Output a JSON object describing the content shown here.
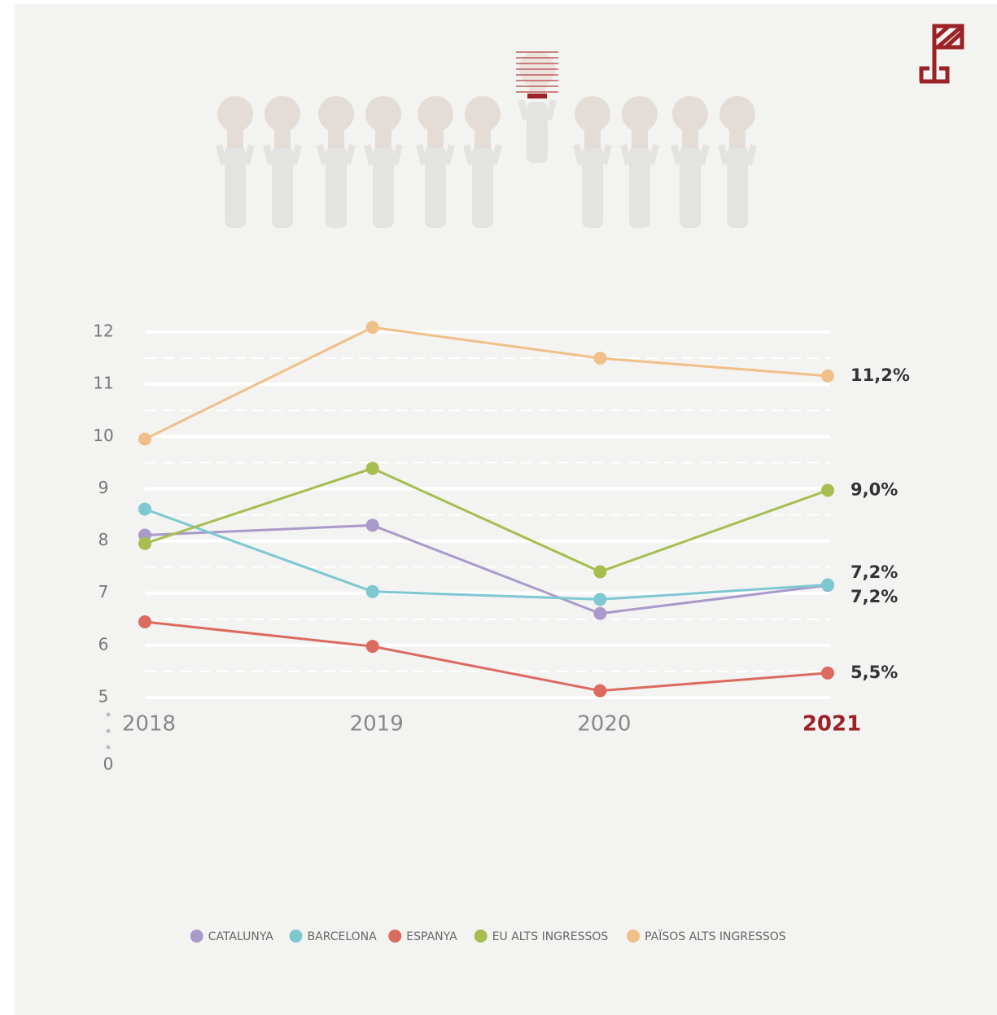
{
  "chart_data": {
    "type": "line",
    "categories": [
      "2018",
      "2019",
      "2020",
      "2021"
    ],
    "series": [
      {
        "name": "CATALUNYA",
        "color": "#a99acb",
        "values": [
          8.11,
          8.3,
          6.61,
          7.15
        ],
        "value_labels": [
          null,
          null,
          null,
          "7,2%"
        ]
      },
      {
        "name": "BARCELONA",
        "color": "#7ec8d2",
        "values": [
          8.61,
          7.03,
          6.88,
          7.16
        ],
        "value_labels": [
          null,
          null,
          null,
          "7,2%"
        ]
      },
      {
        "name": "ESPANYA",
        "color": "#dc6a5f",
        "values": [
          6.45,
          5.98,
          5.13,
          5.47
        ],
        "value_labels": [
          null,
          null,
          null,
          "5,5%"
        ]
      },
      {
        "name": "EU ALTS INGRESSOS",
        "color": "#a5be4f",
        "values": [
          7.95,
          9.39,
          7.41,
          8.97
        ],
        "value_labels": [
          null,
          null,
          null,
          "9,0%"
        ]
      },
      {
        "name": "PAÏSOS ALTS INGRESSOS",
        "color": "#f0c088",
        "values": [
          9.95,
          12.09,
          11.5,
          11.16
        ],
        "value_labels": [
          null,
          null,
          null,
          "11,2%"
        ]
      }
    ],
    "ylim": [
      5,
      12
    ],
    "yticks": [
      5,
      6,
      7,
      8,
      9,
      10,
      11,
      12
    ],
    "minor_yticks": [
      5.5,
      6.5,
      7.5,
      8.5,
      9.5,
      10.5,
      11.5
    ],
    "axis_break_label": "0",
    "grid": true,
    "legend": "bottom"
  }
}
